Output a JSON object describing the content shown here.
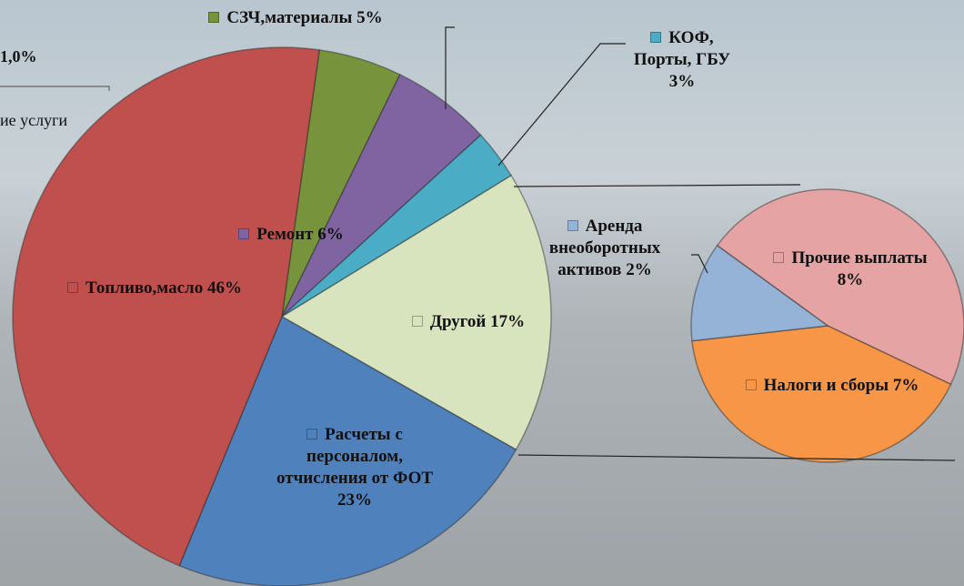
{
  "chart_data": [
    {
      "type": "pie",
      "categories": [
        "СЗЧ,материалы",
        "Ремонт",
        "КОФ, Порты, ГБУ",
        "Другой",
        "Расчеты с персоналом, отчисления от ФОТ",
        "Топливо,масло"
      ],
      "values": [
        5,
        6,
        3,
        17,
        23,
        46
      ],
      "value_labels": [
        "5%",
        "6%",
        "3%",
        "17%",
        "23%",
        "46%"
      ],
      "colors": [
        "#77933c",
        "#8064a2",
        "#4bacc6",
        "#d7e4bd",
        "#4f81bd",
        "#c0504d"
      ]
    },
    {
      "type": "pie",
      "categories": [
        "Прочие выплаты",
        "Налоги и сборы",
        "Аренда внеоборотных активов"
      ],
      "values": [
        8,
        7,
        2
      ],
      "value_labels": [
        "8%",
        "7%",
        "2%"
      ],
      "colors": [
        "#e6a3a3",
        "#f79646",
        "#95b3d7"
      ]
    }
  ],
  "fragments": [
    "1,0%",
    "ие услуги"
  ]
}
